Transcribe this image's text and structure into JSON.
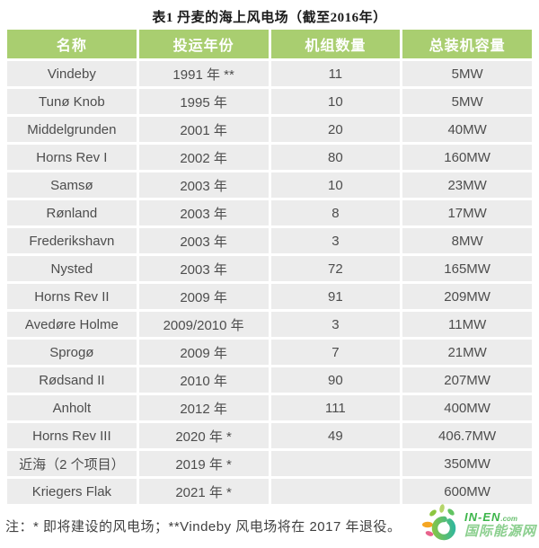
{
  "title": "表1 丹麦的海上风电场（截至2016年）",
  "table": {
    "headers": [
      "名称",
      "投运年份",
      "机组数量",
      "总装机容量"
    ],
    "rows": [
      [
        "Vindeby",
        "1991 年 **",
        "11",
        "5MW"
      ],
      [
        "Tunø Knob",
        "1995 年",
        "10",
        "5MW"
      ],
      [
        "Middelgrunden",
        "2001 年",
        "20",
        "40MW"
      ],
      [
        "Horns Rev I",
        "2002 年",
        "80",
        "160MW"
      ],
      [
        "Samsø",
        "2003 年",
        "10",
        "23MW"
      ],
      [
        "Rønland",
        "2003 年",
        "8",
        "17MW"
      ],
      [
        "Frederikshavn",
        "2003 年",
        "3",
        "8MW"
      ],
      [
        "Nysted",
        "2003 年",
        "72",
        "165MW"
      ],
      [
        "Horns Rev II",
        "2009 年",
        "91",
        "209MW"
      ],
      [
        "Avedøre Holme",
        "2009/2010 年",
        "3",
        "11MW"
      ],
      [
        "Sprogø",
        "2009 年",
        "7",
        "21MW"
      ],
      [
        "Rødsand II",
        "2010 年",
        "90",
        "207MW"
      ],
      [
        "Anholt",
        "2012 年",
        "111",
        "400MW"
      ],
      [
        "Horns Rev III",
        "2020 年 *",
        "49",
        "406.7MW"
      ],
      [
        "近海（2 个项目）",
        "2019 年 *",
        "",
        "350MW"
      ],
      [
        "Kriegers Flak",
        "2021 年 *",
        "",
        "600MW"
      ]
    ]
  },
  "note": "注：* 即将建设的风电场；**Vindeby 风电场将在 2017 年退役。",
  "logo": {
    "name_en": "IN-EN",
    "domain_suffix": ".com",
    "name_cn": "国际能源网"
  },
  "colors": {
    "header_bg": "#a9ce70",
    "row_bg": "#ececec",
    "header_text": "#ffffff",
    "body_text": "#4d4d4d"
  }
}
